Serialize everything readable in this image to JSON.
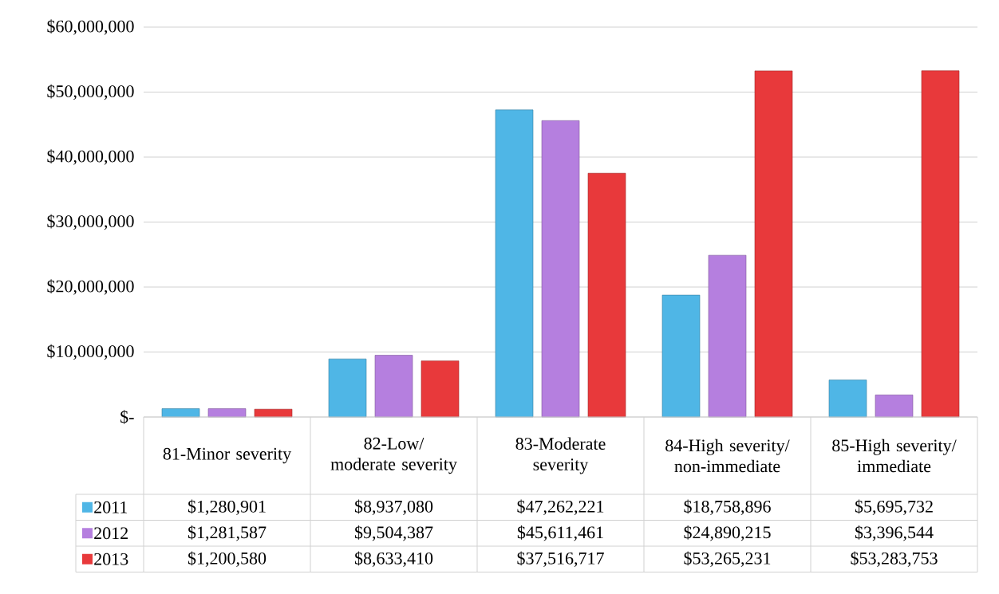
{
  "chart_data": {
    "type": "bar",
    "categories": [
      "81-Minor severity",
      "82-Low/ moderate severity",
      "83-Moderate severity",
      "84-High severity/ non-immediate",
      "85-High severity/ immediate"
    ],
    "series": [
      {
        "name": "2011",
        "color": "#4fb6e6",
        "values": [
          1280901,
          8937080,
          47262221,
          18758896,
          5695732
        ],
        "value_labels": [
          "$1,280,901",
          "$8,937,080",
          "$47,262,221",
          "$18,758,896",
          "$5,695,732"
        ]
      },
      {
        "name": "2012",
        "color": "#b57fdf",
        "values": [
          1281587,
          9504387,
          45611461,
          24890215,
          3396544
        ],
        "value_labels": [
          "$1,281,587",
          "$9,504,387",
          "$45,611,461",
          "$24,890,215",
          "$3,396,544"
        ]
      },
      {
        "name": "2013",
        "color": "#e8393b",
        "values": [
          1200580,
          8633410,
          37516717,
          53265231,
          53283753
        ],
        "value_labels": [
          "$1,200,580",
          "$8,633,410",
          "$37,516,717",
          "$53,265,231",
          "$53,283,753"
        ]
      }
    ],
    "ylim": [
      0,
      60000000
    ],
    "yticks": [
      {
        "value": 0,
        "label": "$-"
      },
      {
        "value": 10000000,
        "label": "$10,000,000"
      },
      {
        "value": 20000000,
        "label": "$20,000,000"
      },
      {
        "value": 30000000,
        "label": "$30,000,000"
      },
      {
        "value": 40000000,
        "label": "$40,000,000"
      },
      {
        "value": 50000000,
        "label": "$50,000,000"
      },
      {
        "value": 60000000,
        "label": "$60,000,000"
      }
    ],
    "grid": "y",
    "legend": "bottom"
  }
}
